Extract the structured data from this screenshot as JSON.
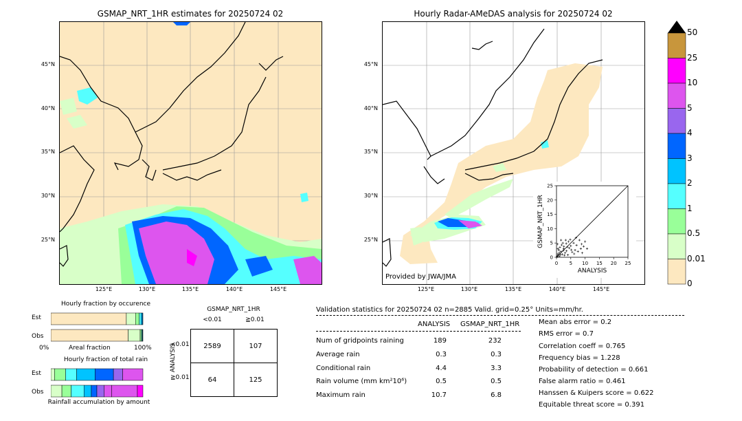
{
  "left_map": {
    "title": "GSMAP_NRT_1HR estimates for 20250724 02",
    "lat_labels": [
      "45°N",
      "40°N",
      "35°N",
      "30°N",
      "25°N"
    ],
    "lon_labels": [
      "125°E",
      "130°E",
      "135°E",
      "140°E",
      "145°E"
    ]
  },
  "right_map": {
    "title": "Hourly Radar-AMeDAS analysis for 20250724 02",
    "lat_labels": [
      "45°N",
      "40°N",
      "35°N",
      "30°N",
      "25°N"
    ],
    "lon_labels": [
      "125°E",
      "130°E",
      "135°E",
      "140°E",
      "145°E"
    ],
    "credit": "Provided by JWA/JMA"
  },
  "colorbar": {
    "labels": [
      "50",
      "25",
      "10",
      "5",
      "4",
      "3",
      "2",
      "1",
      "0.5",
      "0.01",
      "0"
    ],
    "colors": [
      "#c8963c",
      "#ff00ff",
      "#dd55ee",
      "#9966ee",
      "#0066ff",
      "#00c3ff",
      "#55ffff",
      "#99ff99",
      "#d8ffc8",
      "#fde8c0"
    ]
  },
  "colors": {
    "land_bg": "#fde8c0",
    "rain_light": "#d8ffc8",
    "rain_cyan": "#55ffff",
    "rain_blue": "#0066ff",
    "rain_violet": "#dd55ee"
  },
  "chart_data": [
    {
      "type": "scatter",
      "title": "",
      "xlabel": "ANALYSIS",
      "ylabel": "GSMAP_NRT_1HR",
      "xlim": [
        0,
        25
      ],
      "ylim": [
        0,
        25
      ],
      "x_ticks": [
        "0",
        "5",
        "10",
        "15",
        "20",
        "25"
      ],
      "y_ticks": [
        "0",
        "5",
        "10",
        "15",
        "20",
        "25"
      ],
      "points": [
        [
          0.3,
          0.5
        ],
        [
          0.5,
          1.2
        ],
        [
          1.0,
          0.4
        ],
        [
          1.5,
          2.0
        ],
        [
          2.0,
          1.0
        ],
        [
          2.5,
          3.0
        ],
        [
          3.0,
          1.5
        ],
        [
          0.8,
          2.5
        ],
        [
          1.2,
          3.5
        ],
        [
          3.5,
          2.2
        ],
        [
          4.0,
          0.8
        ],
        [
          4.5,
          3.2
        ],
        [
          5.0,
          4.0
        ],
        [
          5.5,
          1.8
        ],
        [
          6.0,
          5.0
        ],
        [
          6.5,
          2.5
        ],
        [
          7.0,
          4.2
        ],
        [
          8.0,
          6.0
        ],
        [
          8.5,
          3.0
        ],
        [
          9.0,
          1.5
        ],
        [
          10.0,
          5.5
        ],
        [
          10.7,
          3.0
        ],
        [
          2.2,
          5.0
        ],
        [
          1.8,
          4.3
        ],
        [
          3.2,
          6.0
        ],
        [
          0.5,
          3.0
        ],
        [
          1.0,
          1.5
        ],
        [
          2.8,
          0.7
        ],
        [
          4.2,
          5.5
        ],
        [
          6.8,
          6.8
        ],
        [
          0.2,
          0.2
        ],
        [
          0.6,
          0.8
        ],
        [
          1.4,
          0.9
        ],
        [
          2.4,
          2.4
        ],
        [
          3.8,
          3.6
        ],
        [
          5.2,
          2.6
        ],
        [
          7.5,
          2.0
        ],
        [
          9.5,
          3.8
        ],
        [
          4.8,
          6.2
        ],
        [
          1.6,
          6.0
        ],
        [
          0.4,
          4.6
        ],
        [
          2.6,
          3.8
        ],
        [
          6.2,
          1.2
        ],
        [
          3.4,
          4.8
        ],
        [
          8.8,
          4.6
        ]
      ]
    },
    {
      "type": "bar",
      "title": "Hourly fraction by occurence",
      "categories": [
        "Est",
        "Obs"
      ],
      "xlabel": "Areal fraction",
      "x_ticks": [
        "0%",
        "100%"
      ],
      "series": [
        {
          "values": [
            0.82,
            0.84
          ]
        },
        {
          "values": [
            0.1,
            0.13
          ]
        },
        {
          "values": [
            0.04,
            0.015
          ]
        },
        {
          "values": [
            0.02,
            0.008
          ]
        },
        {
          "values": [
            0.015,
            0.005
          ]
        },
        {
          "values": [
            0.005,
            0.002
          ]
        }
      ],
      "colors": [
        "#fde8c0",
        "#d8ffc8",
        "#99ff99",
        "#55ffff",
        "#00c3ff",
        "#0066ff"
      ]
    },
    {
      "type": "bar",
      "title": "Hourly fraction of total rain",
      "categories": [
        "Est",
        "Obs"
      ],
      "xlabel": "Rainfall accumulation by amount",
      "series": [
        {
          "values": [
            0.04,
            0.12
          ]
        },
        {
          "values": [
            0.12,
            0.1
          ]
        },
        {
          "values": [
            0.12,
            0.14
          ]
        },
        {
          "values": [
            0.2,
            0.08
          ]
        },
        {
          "values": [
            0.2,
            0.06
          ]
        },
        {
          "values": [
            0.1,
            0.08
          ]
        },
        {
          "values": [
            0.22,
            0.08
          ]
        },
        {
          "values": [
            0.0,
            0.28
          ]
        },
        {
          "values": [
            0.0,
            0.06
          ]
        }
      ],
      "colors": [
        "#d8ffc8",
        "#99ff99",
        "#55ffff",
        "#00c3ff",
        "#0066ff",
        "#9966ee",
        "#dd55ee",
        "#dd55ee",
        "#ff00ff"
      ]
    },
    {
      "type": "table",
      "title": "GSMAP_NRT_1HR",
      "col_headers": [
        "<0.01",
        "≧0.01"
      ],
      "row_axis_label": "ANALYSIS",
      "row_headers": [
        "<0.01",
        "≧0.01"
      ],
      "cells": [
        [
          "2589",
          "107"
        ],
        [
          "64",
          "125"
        ]
      ]
    }
  ],
  "validation": {
    "header": "Validation statistics for 20250724 02  n=2885 Valid. grid=0.25° Units=mm/hr.",
    "col_analysis": "ANALYSIS",
    "col_gsmap": "GSMAP_NRT_1HR",
    "rows": [
      {
        "label": "Num of gridpoints raining",
        "analysis": "189",
        "gsmap": "232"
      },
      {
        "label": "Average rain",
        "analysis": "0.3",
        "gsmap": "0.3"
      },
      {
        "label": "Conditional rain",
        "analysis": "4.4",
        "gsmap": "3.3"
      },
      {
        "label": "Rain volume (mm km²10⁶)",
        "analysis": "0.5",
        "gsmap": "0.5"
      },
      {
        "label": "Maximum rain",
        "analysis": "10.7",
        "gsmap": "6.8"
      }
    ],
    "scores": [
      "Mean abs error =    0.2",
      "RMS error =    0.7",
      "Correlation coeff =  0.765",
      "Frequency bias =  1.228",
      "Probability of detection =  0.661",
      "False alarm ratio =  0.461",
      "Hanssen & Kuipers score =  0.622",
      "Equitable threat score =  0.391"
    ]
  }
}
